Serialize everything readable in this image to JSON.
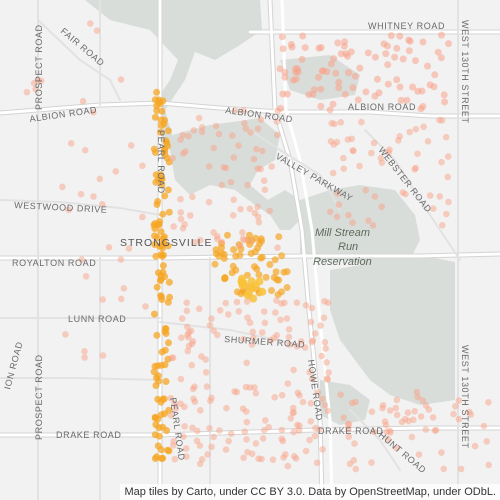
{
  "map": {
    "tiles": "Carto Light",
    "colors": {
      "background": "#f2f2f2",
      "park": "#d9ddd9",
      "road": "#ffffff",
      "road_casing": "#d0d0d0",
      "highway": "#ffffff",
      "dot_dense": "#f5a623",
      "dot_sparse": "#f7a38a"
    },
    "labels": {
      "whitney_road": "WHITNEY ROAD",
      "fair_road": "FAIR ROAD",
      "albion_road_west": "ALBION ROAD",
      "albion_road_center": "ALBION ROAD",
      "albion_road_east": "ALBION ROAD",
      "prospect_road_north": "PROSPECT ROAD",
      "prospect_road_south": "PROSPECT ROAD",
      "pearl_road_north": "PEARL ROAD",
      "pearl_road_south": "PEARL ROAD",
      "valley_parkway": "VALLEY PARKWAY",
      "webster_road": "WEBSTER ROAD",
      "westwood_drive": "WESTWOOD DRIVE",
      "strongsville": "STRONGSVILLE",
      "mill_stream_line1": "Mill Stream",
      "mill_stream_line2": "Run",
      "mill_stream_line3": "Reservation",
      "royalton_road": "ROYALTON ROAD",
      "lunn_road": "LUNN ROAD",
      "shurmer_road": "SHURMER ROAD",
      "howe_road": "HOWE ROAD",
      "west_130th_north": "WEST 130TH STREET",
      "west_130th_south": "WEST 130TH STREET",
      "drake_road_west": "DRAKE ROAD",
      "drake_road_east": "DRAKE ROAD",
      "hunt_road": "HUNT ROAD",
      "ion_road": "ION ROAD"
    }
  },
  "attribution": "Map tiles by Carto, under CC BY 3.0. Data by OpenStreetMap, under ODbL."
}
